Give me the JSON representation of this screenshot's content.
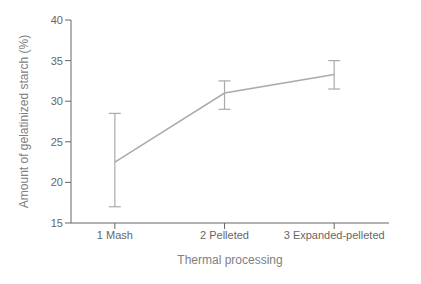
{
  "chart_data": {
    "type": "line",
    "x": [
      1,
      2,
      3
    ],
    "values": [
      22.5,
      31.0,
      33.3
    ],
    "error_lower": [
      5.5,
      2.0,
      1.8
    ],
    "error_upper": [
      6.0,
      1.5,
      1.7
    ],
    "xlim": [
      0.6,
      3.5
    ],
    "xticks": [
      {
        "value": 1,
        "label": "1 Mash"
      },
      {
        "value": 2,
        "label": "2 Pelleted"
      },
      {
        "value": 3,
        "label": "3 Expanded-pelleted"
      }
    ],
    "ylim": [
      15,
      40
    ],
    "yticks": [
      15,
      20,
      25,
      30,
      35,
      40
    ],
    "xlabel": "Thermal processing",
    "ylabel": "Amount of gelatinized starch (%)",
    "color": "#aaaaaa",
    "grid": false
  }
}
